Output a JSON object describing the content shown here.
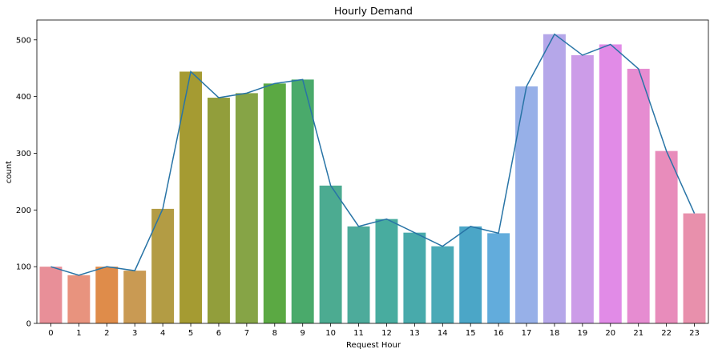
{
  "chart_data": {
    "type": "bar",
    "title": "Hourly Demand",
    "xlabel": "Request Hour",
    "ylabel": "count",
    "categories": [
      "0",
      "1",
      "2",
      "3",
      "4",
      "5",
      "6",
      "7",
      "8",
      "9",
      "10",
      "11",
      "12",
      "13",
      "14",
      "15",
      "16",
      "17",
      "18",
      "19",
      "20",
      "21",
      "22",
      "23"
    ],
    "values": [
      100,
      85,
      100,
      93,
      202,
      444,
      398,
      406,
      423,
      430,
      243,
      171,
      184,
      160,
      136,
      171,
      159,
      418,
      510,
      473,
      492,
      449,
      304,
      194
    ],
    "line_values": [
      100,
      85,
      100,
      93,
      202,
      444,
      398,
      406,
      423,
      430,
      243,
      171,
      184,
      160,
      136,
      171,
      159,
      418,
      510,
      473,
      492,
      449,
      304,
      194
    ],
    "ylim": [
      0,
      535
    ],
    "yticks": [
      0,
      100,
      200,
      300,
      400,
      500
    ],
    "grid": false,
    "bar_colors": [
      "#e88f98",
      "#e8937e",
      "#df8c4a",
      "#c99a53",
      "#b39c44",
      "#a59b32",
      "#929e3b",
      "#86a446",
      "#5ba943",
      "#4aaa6b",
      "#4cab91",
      "#4dab9b",
      "#48ac9f",
      "#48aaab",
      "#4aaab7",
      "#4ba6c7",
      "#62acdc",
      "#97b0e8",
      "#b5a7e9",
      "#cc9ce8",
      "#e18be7",
      "#e68cd1",
      "#e88cbb",
      "#e890ac"
    ],
    "line_color": "#2874a6"
  }
}
